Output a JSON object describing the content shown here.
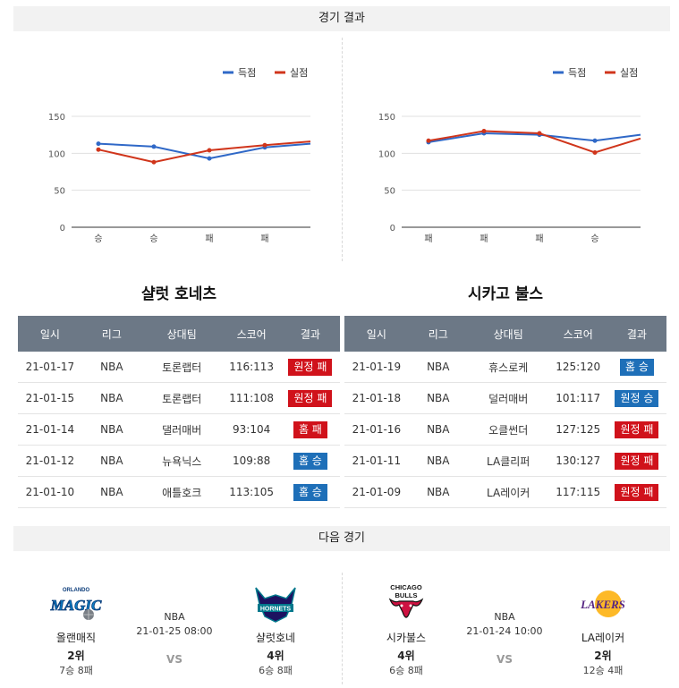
{
  "sections": {
    "results_title": "경기 결과",
    "next_title": "다음 경기"
  },
  "colors": {
    "scored": "#2f68c7",
    "conceded": "#d0351b",
    "win": "#1e6fb8",
    "lose": "#d0121b"
  },
  "left": {
    "team_name": "샬럿 호네츠",
    "chart_data": {
      "type": "line",
      "categories": [
        "승",
        "승",
        "패",
        "패",
        ""
      ],
      "ylim": [
        0,
        150
      ],
      "yticks": [
        0,
        50,
        100,
        150
      ],
      "legend_position": "top-right",
      "series": [
        {
          "name": "득점",
          "color": "#2f68c7",
          "values": [
            113,
            109,
            93,
            108,
            113
          ]
        },
        {
          "name": "실점",
          "color": "#d0351b",
          "values": [
            105,
            88,
            104,
            111,
            116
          ]
        }
      ]
    },
    "headers": [
      "일시",
      "리그",
      "상대팀",
      "스코어",
      "결과"
    ],
    "rows": [
      {
        "date": "21-01-17",
        "league": "NBA",
        "opponent": "토론랩터",
        "score": "116:113",
        "result": "원정 패",
        "status": "lose"
      },
      {
        "date": "21-01-15",
        "league": "NBA",
        "opponent": "토론랩터",
        "score": "111:108",
        "result": "원정 패",
        "status": "lose"
      },
      {
        "date": "21-01-14",
        "league": "NBA",
        "opponent": "댈러매버",
        "score": "93:104",
        "result": "홈 패",
        "status": "lose"
      },
      {
        "date": "21-01-12",
        "league": "NBA",
        "opponent": "뉴욕닉스",
        "score": "109:88",
        "result": "홈 승",
        "status": "win"
      },
      {
        "date": "21-01-10",
        "league": "NBA",
        "opponent": "애틀호크",
        "score": "113:105",
        "result": "홈 승",
        "status": "win"
      }
    ],
    "next": {
      "league": "NBA",
      "datetime": "21-01-25 08:00",
      "vs": "VS",
      "home": {
        "name": "올랜매직",
        "rank": "2위",
        "record": "7승 8패",
        "logo": "orlando-magic-logo",
        "logo_text": "MAGIC"
      },
      "away": {
        "name": "샬럿호네",
        "rank": "4위",
        "record": "6승 8패",
        "logo": "charlotte-hornets-logo",
        "logo_text": "HORNETS"
      }
    }
  },
  "right": {
    "team_name": "시카고 불스",
    "chart_data": {
      "type": "line",
      "categories": [
        "패",
        "패",
        "패",
        "승",
        ""
      ],
      "ylim": [
        0,
        150
      ],
      "yticks": [
        0,
        50,
        100,
        150
      ],
      "legend_position": "top-right",
      "series": [
        {
          "name": "득점",
          "color": "#2f68c7",
          "values": [
            115,
            127,
            125,
            117,
            125
          ]
        },
        {
          "name": "실점",
          "color": "#d0351b",
          "values": [
            117,
            130,
            127,
            101,
            120
          ]
        }
      ]
    },
    "headers": [
      "일시",
      "리그",
      "상대팀",
      "스코어",
      "결과"
    ],
    "rows": [
      {
        "date": "21-01-19",
        "league": "NBA",
        "opponent": "휴스로케",
        "score": "125:120",
        "result": "홈 승",
        "status": "win"
      },
      {
        "date": "21-01-18",
        "league": "NBA",
        "opponent": "덜러매버",
        "score": "101:117",
        "result": "원정 승",
        "status": "win"
      },
      {
        "date": "21-01-16",
        "league": "NBA",
        "opponent": "오클썬더",
        "score": "127:125",
        "result": "원정 패",
        "status": "lose"
      },
      {
        "date": "21-01-11",
        "league": "NBA",
        "opponent": "LA클리퍼",
        "score": "130:127",
        "result": "원정 패",
        "status": "lose"
      },
      {
        "date": "21-01-09",
        "league": "NBA",
        "opponent": "LA레이커",
        "score": "117:115",
        "result": "원정 패",
        "status": "lose"
      }
    ],
    "next": {
      "league": "NBA",
      "datetime": "21-01-24 10:00",
      "vs": "VS",
      "home": {
        "name": "시카불스",
        "rank": "4위",
        "record": "6승 8패",
        "logo": "chicago-bulls-logo",
        "logo_text": "CHICAGO BULLS"
      },
      "away": {
        "name": "LA레이커",
        "rank": "2위",
        "record": "12승 4패",
        "logo": "la-lakers-logo",
        "logo_text": "LAKERS"
      }
    }
  }
}
